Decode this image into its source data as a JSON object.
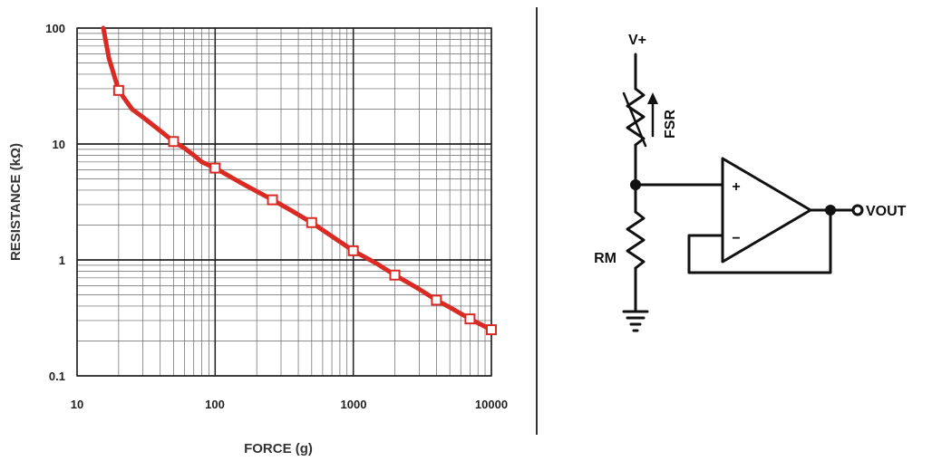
{
  "chart_data": {
    "type": "line",
    "xlabel": "FORCE (g)",
    "ylabel": "RESISTANCE (kΩ)",
    "x_scale": "log",
    "y_scale": "log",
    "xlim": [
      10,
      10000
    ],
    "ylim": [
      0.1,
      100
    ],
    "x_ticks": [
      "10",
      "100",
      "1000",
      "10000"
    ],
    "y_ticks": [
      "0.1",
      "1",
      "10",
      "100"
    ],
    "grid": true,
    "legend": "none",
    "series": [
      {
        "color": "#d92b24",
        "curve_x": [
          15.5,
          17,
          20,
          25,
          30,
          40,
          50,
          60,
          70,
          80,
          100,
          150,
          200,
          260,
          350,
          500,
          700,
          1000,
          1500,
          2000,
          3000,
          4000,
          5000,
          7000,
          10000
        ],
        "curve_y": [
          100,
          55,
          29,
          20,
          17,
          13,
          10.5,
          9.2,
          8,
          7,
          6.2,
          4.7,
          3.9,
          3.3,
          2.7,
          2.1,
          1.6,
          1.2,
          0.92,
          0.74,
          0.56,
          0.45,
          0.39,
          0.31,
          0.25
        ],
        "marker_x": [
          20,
          50,
          100,
          260,
          500,
          1000,
          2000,
          4000,
          7000,
          10000
        ],
        "marker_y": [
          29,
          10.5,
          6.2,
          3.3,
          2.1,
          1.2,
          0.74,
          0.45,
          0.31,
          0.25
        ]
      }
    ]
  },
  "schematic": {
    "supply_label": "V+",
    "fsr_label": "FSR",
    "rm_label": "RM",
    "plus_sign": "+",
    "minus_sign": "−",
    "output_label": "VOUT"
  },
  "colors": {
    "curve": "#d92b24",
    "grid": "#666666",
    "ink": "#111111"
  }
}
